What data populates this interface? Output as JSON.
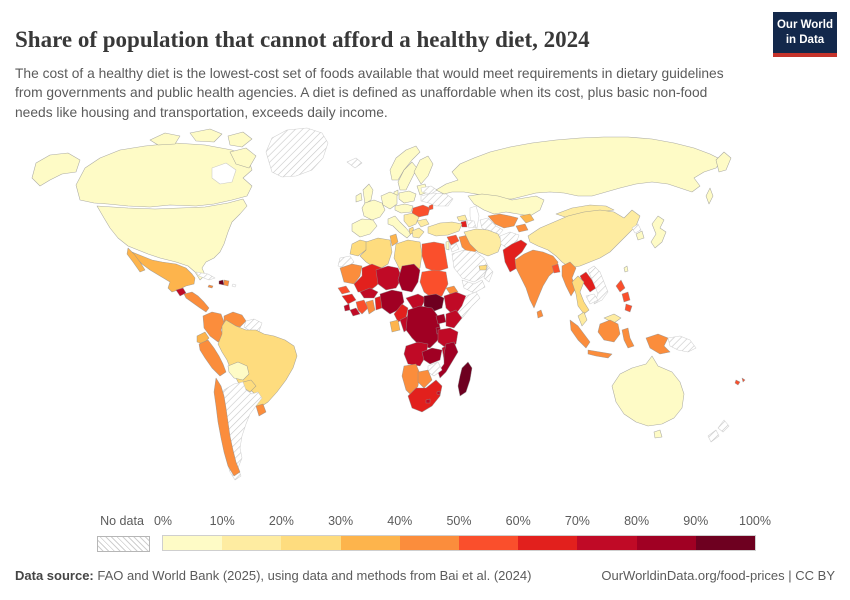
{
  "header": {
    "title": "Share of population that cannot afford a healthy diet, 2024",
    "subtitle": "The cost of a healthy diet is the lowest-cost set of foods available that would meet requirements in dietary guidelines from governments and public health agencies. A diet is defined as unaffordable when its cost, plus basic non-food needs like housing and transportation, exceeds daily income."
  },
  "logo": {
    "line1": "Our World",
    "line2": "in Data",
    "bg_color": "#13284b",
    "accent_color": "#c5332b"
  },
  "legend": {
    "no_data_label": "No data",
    "ticks": [
      "0%",
      "10%",
      "20%",
      "30%",
      "40%",
      "50%",
      "60%",
      "70%",
      "80%",
      "90%",
      "100%"
    ]
  },
  "footer": {
    "source_label": "Data source:",
    "source_text": " FAO and World Bank (2025), using data and methods from Bai et al. (2024)",
    "link": "OurWorldinData.org/food-prices",
    "separator": " | ",
    "license": "CC BY"
  },
  "chart_data": {
    "type": "choropleth_map",
    "title": "Share of population that cannot afford a healthy diet, 2024",
    "unit": "% of population",
    "projection": "world",
    "legend_position": "bottom",
    "no_data_style": "diagonal-hatch",
    "buckets": [
      {
        "range": "0-10%",
        "color": "#FEFBC6"
      },
      {
        "range": "10-20%",
        "color": "#FEECA1"
      },
      {
        "range": "20-30%",
        "color": "#FEDC7E"
      },
      {
        "range": "30-40%",
        "color": "#FDB44C"
      },
      {
        "range": "40-50%",
        "color": "#FB8D3C"
      },
      {
        "range": "50-60%",
        "color": "#FA4F2C"
      },
      {
        "range": "60-70%",
        "color": "#E2201D"
      },
      {
        "range": "70-80%",
        "color": "#C00A26"
      },
      {
        "range": "80-90%",
        "color": "#A00023"
      },
      {
        "range": "90-100%",
        "color": "#6E0020"
      }
    ],
    "countries": [
      {
        "name": "United States",
        "range": "0-10%"
      },
      {
        "name": "Canada",
        "range": "0-10%"
      },
      {
        "name": "Greenland",
        "range": "No data"
      },
      {
        "name": "Iceland",
        "range": "No data"
      },
      {
        "name": "Mexico",
        "range": "30-40%"
      },
      {
        "name": "Guatemala",
        "range": "70-80%"
      },
      {
        "name": "Honduras",
        "range": "40-50%"
      },
      {
        "name": "Nicaragua",
        "range": "40-50%"
      },
      {
        "name": "Costa Rica",
        "range": "40-50%"
      },
      {
        "name": "Panama",
        "range": "40-50%"
      },
      {
        "name": "Cuba",
        "range": "No data"
      },
      {
        "name": "Haiti",
        "range": "90-100%"
      },
      {
        "name": "Dominican Republic",
        "range": "40-50%"
      },
      {
        "name": "Jamaica",
        "range": "40-50%"
      },
      {
        "name": "Puerto Rico",
        "range": "No data"
      },
      {
        "name": "Colombia",
        "range": "40-50%"
      },
      {
        "name": "Venezuela",
        "range": "40-50%"
      },
      {
        "name": "Guyana",
        "range": "No data"
      },
      {
        "name": "Suriname",
        "range": "No data"
      },
      {
        "name": "Ecuador",
        "range": "30-40%"
      },
      {
        "name": "Peru",
        "range": "40-50%"
      },
      {
        "name": "Brazil",
        "range": "20-30%"
      },
      {
        "name": "Bolivia",
        "range": "0-10%"
      },
      {
        "name": "Paraguay",
        "range": "20-30%"
      },
      {
        "name": "Chile",
        "range": "40-50%"
      },
      {
        "name": "Argentina",
        "range": "No data"
      },
      {
        "name": "Uruguay",
        "range": "40-50%"
      },
      {
        "name": "United Kingdom",
        "range": "0-10%"
      },
      {
        "name": "Ireland",
        "range": "0-10%"
      },
      {
        "name": "France",
        "range": "0-10%"
      },
      {
        "name": "Spain",
        "range": "0-10%"
      },
      {
        "name": "Portugal",
        "range": "0-10%"
      },
      {
        "name": "Germany",
        "range": "0-10%"
      },
      {
        "name": "Poland",
        "range": "0-10%"
      },
      {
        "name": "Austria",
        "range": "0-10%"
      },
      {
        "name": "Czechia",
        "range": "0-10%"
      },
      {
        "name": "Hungary",
        "range": "0-10%"
      },
      {
        "name": "Denmark",
        "range": "0-10%"
      },
      {
        "name": "Norway",
        "range": "0-10%"
      },
      {
        "name": "Sweden",
        "range": "0-10%"
      },
      {
        "name": "Finland",
        "range": "0-10%"
      },
      {
        "name": "Estonia",
        "range": "0-10%"
      },
      {
        "name": "Latvia",
        "range": "0-10%"
      },
      {
        "name": "Lithuania",
        "range": "0-10%"
      },
      {
        "name": "Italy",
        "range": "0-10%"
      },
      {
        "name": "Greece",
        "range": "10-20%"
      },
      {
        "name": "Bulgaria",
        "range": "10-20%"
      },
      {
        "name": "Serbia",
        "range": "10-20%"
      },
      {
        "name": "Albania",
        "range": "20-30%"
      },
      {
        "name": "Romania",
        "range": "50-60%"
      },
      {
        "name": "Moldova",
        "range": "50-60%"
      },
      {
        "name": "Ukraine",
        "range": "No data"
      },
      {
        "name": "Belarus",
        "range": "No data"
      },
      {
        "name": "Russia",
        "range": "0-10%"
      },
      {
        "name": "Georgia",
        "range": "10-20%"
      },
      {
        "name": "Armenia",
        "range": "60-70%"
      },
      {
        "name": "Azerbaijan",
        "range": "No data"
      },
      {
        "name": "Turkey",
        "range": "10-20%"
      },
      {
        "name": "Syria",
        "range": "50-60%"
      },
      {
        "name": "Israel",
        "range": "0-10%"
      },
      {
        "name": "Jordan",
        "range": "No data"
      },
      {
        "name": "Iraq",
        "range": "40-50%"
      },
      {
        "name": "Saudi Arabia",
        "range": "No data"
      },
      {
        "name": "Yemen",
        "range": "No data"
      },
      {
        "name": "Oman",
        "range": "No data"
      },
      {
        "name": "United Arab Emirates",
        "range": "20-30%"
      },
      {
        "name": "Iran",
        "range": "10-20%"
      },
      {
        "name": "Afghanistan",
        "range": "No data"
      },
      {
        "name": "Pakistan",
        "range": "60-70%"
      },
      {
        "name": "Kazakhstan",
        "range": "0-10%"
      },
      {
        "name": "Uzbekistan",
        "range": "40-50%"
      },
      {
        "name": "Turkmenistan",
        "range": "No data"
      },
      {
        "name": "Kyrgyzstan",
        "range": "30-40%"
      },
      {
        "name": "Tajikistan",
        "range": "40-50%"
      },
      {
        "name": "India",
        "range": "40-50%"
      },
      {
        "name": "Nepal",
        "range": "40-50%"
      },
      {
        "name": "Bangladesh",
        "range": "50-60%"
      },
      {
        "name": "Sri Lanka",
        "range": "40-50%"
      },
      {
        "name": "China",
        "range": "10-20%"
      },
      {
        "name": "Mongolia",
        "range": "10-20%"
      },
      {
        "name": "North Korea",
        "range": "No data"
      },
      {
        "name": "South Korea",
        "range": "0-10%"
      },
      {
        "name": "Japan",
        "range": "0-10%"
      },
      {
        "name": "Taiwan",
        "range": "0-10%"
      },
      {
        "name": "Myanmar",
        "range": "40-50%"
      },
      {
        "name": "Thailand",
        "range": "20-30%"
      },
      {
        "name": "Laos",
        "range": "60-70%"
      },
      {
        "name": "Vietnam",
        "range": "No data"
      },
      {
        "name": "Cambodia",
        "range": "No data"
      },
      {
        "name": "Malaysia",
        "range": "10-20%"
      },
      {
        "name": "Indonesia",
        "range": "40-50%"
      },
      {
        "name": "Philippines",
        "range": "50-60%"
      },
      {
        "name": "Papua New Guinea",
        "range": "No data"
      },
      {
        "name": "Australia",
        "range": "0-10%"
      },
      {
        "name": "New Zealand",
        "range": "No data"
      },
      {
        "name": "Fiji",
        "range": "50-60%"
      },
      {
        "name": "Morocco",
        "range": "20-30%"
      },
      {
        "name": "Western Sahara",
        "range": "No data"
      },
      {
        "name": "Algeria",
        "range": "20-30%"
      },
      {
        "name": "Tunisia",
        "range": "30-40%"
      },
      {
        "name": "Libya",
        "range": "20-30%"
      },
      {
        "name": "Egypt",
        "range": "50-60%"
      },
      {
        "name": "Mauritania",
        "range": "40-50%"
      },
      {
        "name": "Mali",
        "range": "60-70%"
      },
      {
        "name": "Niger",
        "range": "70-80%"
      },
      {
        "name": "Chad",
        "range": "80-90%"
      },
      {
        "name": "Sudan",
        "range": "50-60%"
      },
      {
        "name": "Eritrea",
        "range": "40-50%"
      },
      {
        "name": "Ethiopia",
        "range": "70-80%"
      },
      {
        "name": "Somalia",
        "range": "No data"
      },
      {
        "name": "South Sudan",
        "range": "90-100%"
      },
      {
        "name": "Senegal",
        "range": "50-60%"
      },
      {
        "name": "Guinea",
        "range": "60-70%"
      },
      {
        "name": "Sierra Leone",
        "range": "70-80%"
      },
      {
        "name": "Liberia",
        "range": "70-80%"
      },
      {
        "name": "Ivory Coast",
        "range": "50-60%"
      },
      {
        "name": "Ghana",
        "range": "40-50%"
      },
      {
        "name": "Togo",
        "range": "60-70%"
      },
      {
        "name": "Benin",
        "range": "60-70%"
      },
      {
        "name": "Burkina Faso",
        "range": "70-80%"
      },
      {
        "name": "Nigeria",
        "range": "80-90%"
      },
      {
        "name": "Cameroon",
        "range": "60-70%"
      },
      {
        "name": "Central African Republic",
        "range": "70-80%"
      },
      {
        "name": "Gabon",
        "range": "30-40%"
      },
      {
        "name": "Republic of the Congo",
        "range": "70-80%"
      },
      {
        "name": "Democratic Republic of Congo",
        "range": "80-90%"
      },
      {
        "name": "Uganda",
        "range": "80-90%"
      },
      {
        "name": "Kenya",
        "range": "70-80%"
      },
      {
        "name": "Rwanda",
        "range": "80-90%"
      },
      {
        "name": "Tanzania",
        "range": "70-80%"
      },
      {
        "name": "Angola",
        "range": "70-80%"
      },
      {
        "name": "Zambia",
        "range": "80-90%"
      },
      {
        "name": "Malawi",
        "range": "70-80%"
      },
      {
        "name": "Mozambique",
        "range": "80-90%"
      },
      {
        "name": "Zimbabwe",
        "range": "No data"
      },
      {
        "name": "Namibia",
        "range": "40-50%"
      },
      {
        "name": "Botswana",
        "range": "40-50%"
      },
      {
        "name": "South Africa",
        "range": "60-70%"
      },
      {
        "name": "Lesotho",
        "range": "70-80%"
      },
      {
        "name": "Eswatini",
        "range": "70-80%"
      },
      {
        "name": "Madagascar",
        "range": "90-100%"
      }
    ]
  }
}
